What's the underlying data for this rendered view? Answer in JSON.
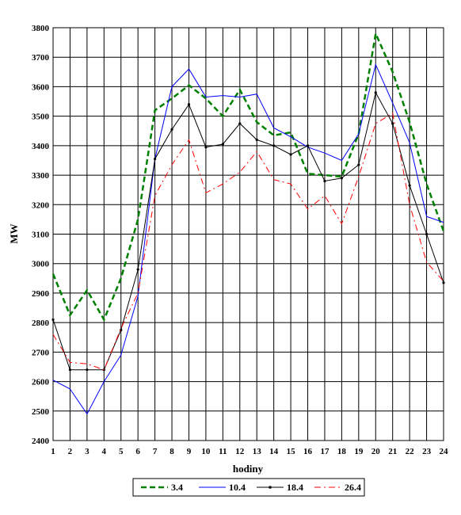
{
  "chart_data": {
    "type": "line",
    "xlabel": "hodiny",
    "ylabel": "MW",
    "x": [
      1,
      2,
      3,
      4,
      5,
      6,
      7,
      8,
      9,
      10,
      11,
      12,
      13,
      14,
      15,
      16,
      17,
      18,
      19,
      20,
      21,
      22,
      23,
      24
    ],
    "ylim": [
      2400,
      3800
    ],
    "yticks": [
      2400,
      2500,
      2600,
      2700,
      2800,
      2900,
      3000,
      3100,
      3200,
      3300,
      3400,
      3500,
      3600,
      3700,
      3800
    ],
    "grid": true,
    "legend_position": "bottom",
    "series": [
      {
        "name": "3.4",
        "color": "#008000",
        "style": "dashed-thick",
        "values": [
          2965,
          2825,
          2910,
          2810,
          2950,
          3150,
          3520,
          3560,
          3605,
          3560,
          3500,
          3590,
          3480,
          3435,
          3445,
          3305,
          3300,
          3295,
          3440,
          3780,
          3650,
          3480,
          3270,
          3110
        ]
      },
      {
        "name": "10.4",
        "color": "#0000ff",
        "style": "solid",
        "values": [
          2605,
          2575,
          2490,
          2600,
          2690,
          2890,
          3355,
          3600,
          3660,
          3565,
          3570,
          3565,
          3575,
          3460,
          3430,
          3395,
          3375,
          3350,
          3440,
          3675,
          3545,
          3410,
          3160,
          3140
        ]
      },
      {
        "name": "18.4",
        "color": "#000000",
        "style": "solid-markers",
        "values": [
          2810,
          2640,
          2640,
          2640,
          2775,
          2980,
          3355,
          3455,
          3540,
          3395,
          3405,
          3475,
          3420,
          3400,
          3370,
          3400,
          3280,
          3290,
          3335,
          3580,
          3475,
          3265,
          3100,
          2935
        ]
      },
      {
        "name": "26.4",
        "color": "#ff0000",
        "style": "dash-dot",
        "values": [
          2760,
          2665,
          2660,
          2640,
          2780,
          2900,
          3230,
          3335,
          3420,
          3240,
          3270,
          3310,
          3380,
          3285,
          3270,
          3185,
          3230,
          3135,
          3295,
          3475,
          3510,
          3200,
          3005,
          2940
        ]
      }
    ]
  }
}
